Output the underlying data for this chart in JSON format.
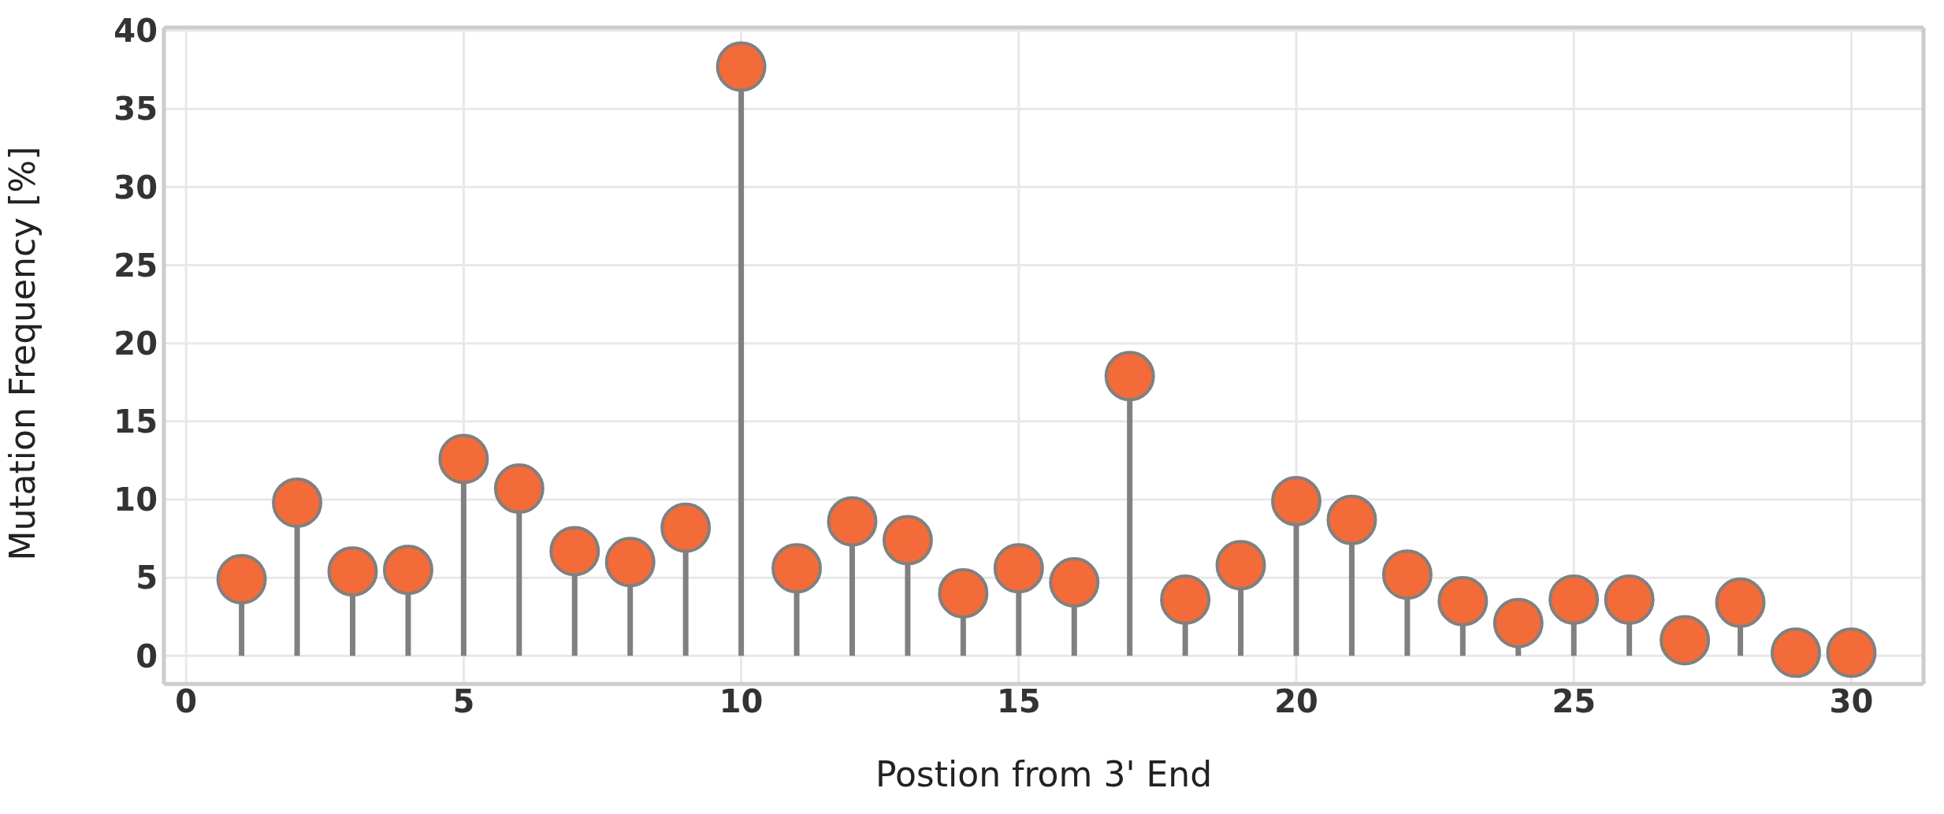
{
  "chart_data": {
    "type": "lollipop",
    "xlabel": "Postion from 3' End",
    "ylabel": "Mutation Frequency [%]",
    "x": [
      1,
      2,
      3,
      4,
      5,
      6,
      7,
      8,
      9,
      10,
      11,
      12,
      13,
      14,
      15,
      16,
      17,
      18,
      19,
      20,
      21,
      22,
      23,
      24,
      25,
      26,
      27,
      28,
      29,
      30
    ],
    "series": [
      {
        "color": "#f26b38",
        "values": [
          4.9,
          9.8,
          5.4,
          5.5,
          12.6,
          10.7,
          6.7,
          6.0,
          8.2,
          37.7,
          5.6,
          8.6,
          7.4,
          4.0,
          5.6,
          4.7,
          17.9,
          3.6,
          5.8,
          9.9,
          8.7,
          5.2,
          3.5,
          2.1,
          3.6,
          3.6,
          1.0,
          3.4,
          0.2,
          0.2
        ]
      }
    ],
    "xlim": [
      -0.4,
      31.3
    ],
    "xticks": [
      0,
      5,
      10,
      15,
      20,
      25,
      30
    ],
    "ylim": [
      -1.8,
      40.2
    ],
    "yticks": [
      0,
      5,
      10,
      15,
      20,
      25,
      30,
      35,
      40
    ],
    "grid": true,
    "marker": "circle"
  }
}
